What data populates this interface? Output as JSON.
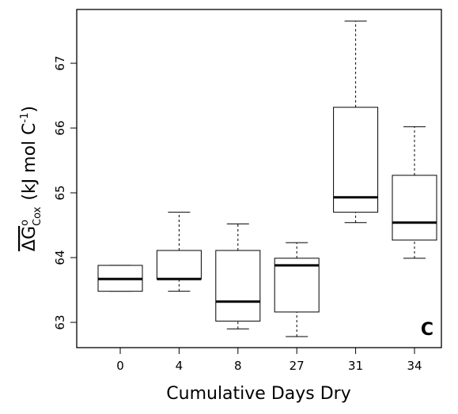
{
  "chart_data": {
    "type": "box",
    "categories": [
      "0",
      "4",
      "8",
      "27",
      "31",
      "34"
    ],
    "whisker_low": [
      63.48,
      63.48,
      62.9,
      62.78,
      64.54,
      63.99
    ],
    "q1": [
      63.48,
      63.67,
      63.02,
      63.16,
      64.7,
      64.27
    ],
    "median": [
      63.67,
      63.67,
      63.32,
      63.88,
      64.93,
      64.54
    ],
    "q3": [
      63.88,
      64.11,
      64.11,
      63.99,
      66.32,
      65.27
    ],
    "whisker_high": [
      63.88,
      64.7,
      64.52,
      64.23,
      67.65,
      66.02
    ],
    "ylim": [
      62.61,
      67.83
    ],
    "yticks": [
      63,
      64,
      65,
      66,
      67
    ],
    "x_label": "Cumulative Days Dry",
    "y_label": {
      "symbol": "ΔG",
      "sup": "o",
      "sub": "Cox",
      "unit": "(kJ mol C",
      "unit_sup": "-1",
      "close": ")"
    },
    "panel_label": "C",
    "color": "#000000"
  }
}
